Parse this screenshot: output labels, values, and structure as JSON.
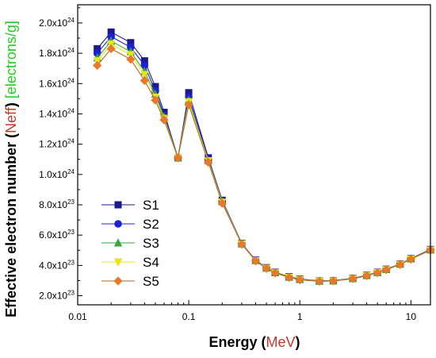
{
  "chart_data": {
    "type": "line",
    "xlabel_prefix": "Energy (",
    "xlabel_unit": "MeV",
    "xlabel_suffix": ")",
    "ylabel_prefix": "Effective electron number (",
    "ylabel_quantity": "Neff",
    "ylabel_middle": ") ",
    "ylabel_unit": "[electrons/g]",
    "xscale": "log",
    "xlim": [
      0.01,
      15
    ],
    "ylim": [
      1.4e+23,
      2.12e+24
    ],
    "grid": false,
    "legend_position": "center-left",
    "x_ticks": [
      {
        "value": 0.01,
        "label": "0.01"
      },
      {
        "value": 0.1,
        "label": "0.1"
      },
      {
        "value": 1,
        "label": "1"
      },
      {
        "value": 10,
        "label": "10"
      }
    ],
    "y_ticks": [
      {
        "value": 2e+23,
        "mantissa": "2.0x10",
        "exp": "23"
      },
      {
        "value": 4e+23,
        "mantissa": "4.0x10",
        "exp": "23"
      },
      {
        "value": 6e+23,
        "mantissa": "6.0x10",
        "exp": "23"
      },
      {
        "value": 8e+23,
        "mantissa": "8.0x10",
        "exp": "23"
      },
      {
        "value": 1e+24,
        "mantissa": "1.0x10",
        "exp": "24"
      },
      {
        "value": 1.2e+24,
        "mantissa": "1.2x10",
        "exp": "24"
      },
      {
        "value": 1.4e+24,
        "mantissa": "1.4x10",
        "exp": "24"
      },
      {
        "value": 1.6e+24,
        "mantissa": "1.6x10",
        "exp": "24"
      },
      {
        "value": 1.8e+24,
        "mantissa": "1.8x10",
        "exp": "24"
      },
      {
        "value": 2e+24,
        "mantissa": "2.0x10",
        "exp": "24"
      }
    ],
    "x": [
      0.015,
      0.02,
      0.03,
      0.04,
      0.05,
      0.06,
      0.08,
      0.1,
      0.15,
      0.2,
      0.3,
      0.4,
      0.5,
      0.6,
      0.8,
      1,
      1.5,
      2,
      3,
      4,
      5,
      6,
      8,
      10,
      15
    ],
    "series": [
      {
        "name": "S1",
        "color": "#1a1a8c",
        "marker": "square",
        "values": [
          1.83e+24,
          1.94e+24,
          1.87e+24,
          1.75e+24,
          1.58e+24,
          1.41e+24,
          1.11e+24,
          1.54e+24,
          1.11e+24,
          8.3e+23,
          5.45e+23,
          4.35e+23,
          3.85e+23,
          3.55e+23,
          3.25e+23,
          3.1e+23,
          2.98e+23,
          3e+23,
          3.15e+23,
          3.35e+23,
          3.55e+23,
          3.75e+23,
          4.1e+23,
          4.45e+23,
          5.05e+23
        ]
      },
      {
        "name": "S2",
        "color": "#1f1fd6",
        "marker": "circle",
        "values": [
          1.8e+24,
          1.91e+24,
          1.84e+24,
          1.72e+24,
          1.55e+24,
          1.39e+24,
          1.11e+24,
          1.51e+24,
          1.1e+24,
          8.25e+23,
          5.43e+23,
          4.33e+23,
          3.83e+23,
          3.53e+23,
          3.23e+23,
          3.08e+23,
          2.97e+23,
          2.99e+23,
          3.14e+23,
          3.34e+23,
          3.54e+23,
          3.74e+23,
          4.09e+23,
          4.44e+23,
          5.03e+23
        ]
      },
      {
        "name": "S3",
        "color": "#3aa63a",
        "marker": "triangle-up",
        "values": [
          1.77e+24,
          1.88e+24,
          1.81e+24,
          1.68e+24,
          1.53e+24,
          1.38e+24,
          1.11e+24,
          1.49e+24,
          1.09e+24,
          8.2e+23,
          5.42e+23,
          4.32e+23,
          3.82e+23,
          3.52e+23,
          3.22e+23,
          3.07e+23,
          2.96e+23,
          2.98e+23,
          3.13e+23,
          3.33e+23,
          3.53e+23,
          3.73e+23,
          4.08e+23,
          4.43e+23,
          5.02e+23
        ]
      },
      {
        "name": "S4",
        "color": "#e6e61a",
        "marker": "triangle-down",
        "values": [
          1.75e+24,
          1.86e+24,
          1.79e+24,
          1.66e+24,
          1.51e+24,
          1.37e+24,
          1.11e+24,
          1.48e+24,
          1.09e+24,
          8.17e+23,
          5.41e+23,
          4.31e+23,
          3.81e+23,
          3.51e+23,
          3.21e+23,
          3.06e+23,
          2.96e+23,
          2.98e+23,
          3.12e+23,
          3.32e+23,
          3.52e+23,
          3.72e+23,
          4.07e+23,
          4.42e+23,
          5.01e+23
        ]
      },
      {
        "name": "S5",
        "color": "#e8782a",
        "line_color": "#b8651e",
        "marker": "diamond",
        "values": [
          1.72e+24,
          1.83e+24,
          1.76e+24,
          1.62e+24,
          1.49e+24,
          1.36e+24,
          1.11e+24,
          1.46e+24,
          1.08e+24,
          8.1e+23,
          5.4e+23,
          4.3e+23,
          3.8e+23,
          3.5e+23,
          3.2e+23,
          3.05e+23,
          2.95e+23,
          2.97e+23,
          3.12e+23,
          3.32e+23,
          3.52e+23,
          3.72e+23,
          4.06e+23,
          4.41e+23,
          5e+23
        ]
      }
    ],
    "colors": {
      "axis_title_highlight": "#c0392b",
      "ylabel_unit": "#22cc22"
    }
  }
}
